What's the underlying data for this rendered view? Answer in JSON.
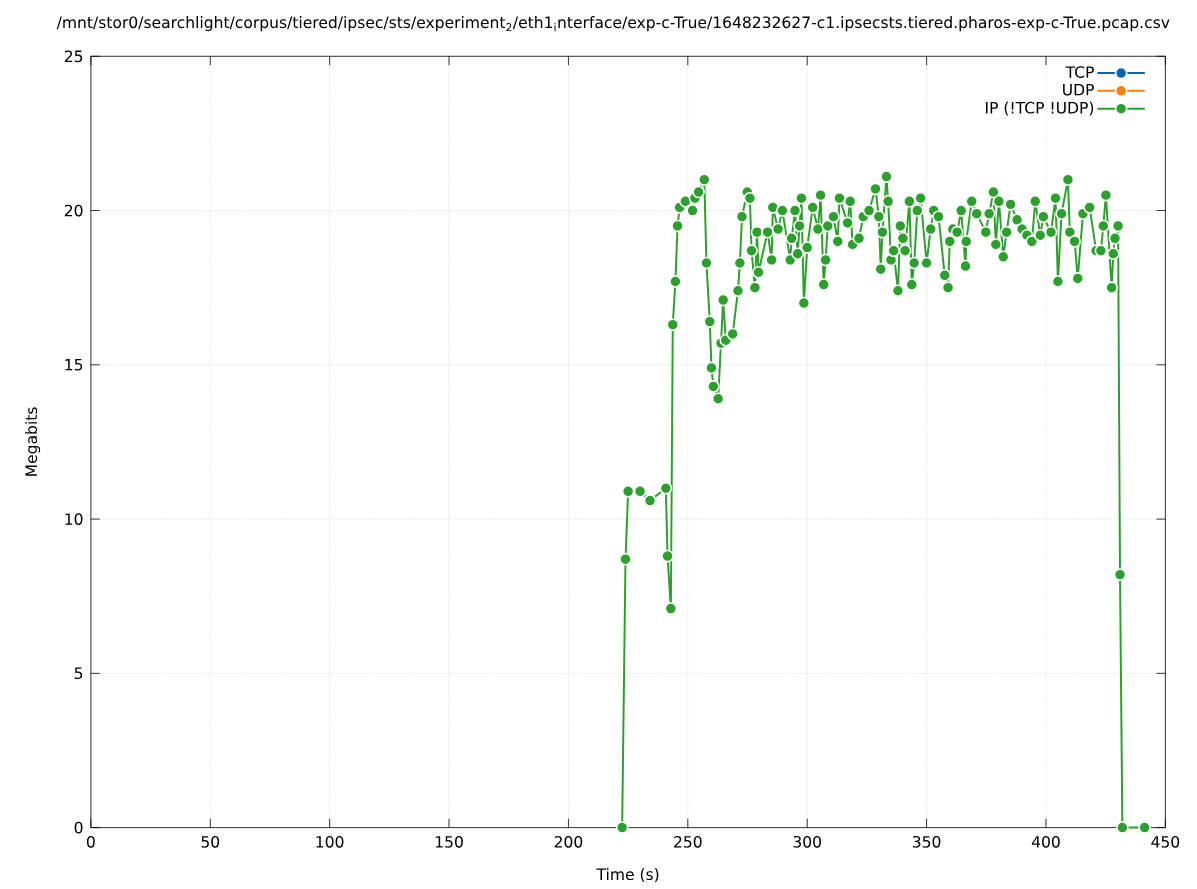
{
  "chart_data": {
    "type": "line",
    "title": "/mnt/stor0/searchlight/corpus/tiered/ipsec/sts/experiment$_{2}$/eth1$_{i}$nterface/exp-c-True/1648232627-c1.ipsecsts.tiered.pharos-exp-c-True.pcap.csv",
    "xlabel": "Time (s)",
    "ylabel": "Megabits",
    "xlim": [
      0,
      450
    ],
    "xticks": [
      0,
      50,
      100,
      150,
      200,
      250,
      300,
      350,
      400,
      450
    ],
    "ylim": [
      0,
      25
    ],
    "yticks": [
      0,
      5,
      10,
      15,
      20,
      25
    ],
    "grid": true,
    "legend": "top right",
    "marker": "circle",
    "line_style": "solid",
    "series": [
      {
        "name": "TCP",
        "color": "#0464b4"
      },
      {
        "name": "UDP",
        "color": "#ff7f0e"
      },
      {
        "name": "IP (!TCP !UDP)",
        "color": "#2ca02c",
        "x": [
          222.5,
          223.9,
          225,
          230,
          234.2,
          240.8,
          241.5,
          242.9,
          243.7,
          244.8,
          245.7,
          246.6,
          249,
          252,
          253,
          254.5,
          256.9,
          257.8,
          259.2,
          259.9,
          260.7,
          262.7,
          263.9,
          264.8,
          265.9,
          268.8,
          271.0,
          271.8,
          272.7,
          274.9,
          276,
          276.7,
          278.1,
          279,
          279.6,
          283.4,
          285.1,
          285.6,
          287.8,
          289.6,
          292.9,
          293.5,
          294.9,
          296,
          296.8,
          297.6,
          298.6,
          300,
          302.3,
          304.5,
          305.6,
          306.9,
          307.7,
          308.6,
          311,
          312.8,
          313.5,
          316.9,
          318,
          319,
          321.7,
          323.5,
          325.9,
          328.6,
          330,
          330.8,
          331.5,
          333.2,
          333.9,
          335.1,
          336.2,
          338,
          339,
          340.1,
          341,
          342.8,
          343.8,
          344.8,
          346.1,
          347.5,
          350,
          351.7,
          353,
          355,
          357.6,
          359,
          359.7,
          361,
          362.8,
          364.5,
          366.3,
          366.6,
          368.9,
          371,
          374.8,
          376.2,
          378,
          379,
          380.3,
          382.1,
          383.5,
          385.2,
          387.9,
          390,
          392,
          394.1,
          395.5,
          397.6,
          398.9,
          402.1,
          404,
          405,
          406.5,
          409.2,
          410,
          412,
          413.3,
          415.5,
          418.3,
          421,
          423,
          424,
          425.1,
          427.5,
          428.2,
          428.9,
          430.2,
          431,
          432,
          441.3
        ],
        "values": [
          0,
          8.7,
          10.9,
          10.9,
          10.6,
          11.0,
          8.8,
          7.1,
          16.3,
          17.7,
          19.5,
          20.1,
          20.3,
          20.0,
          20.4,
          20.6,
          21.0,
          18.3,
          16.4,
          14.9,
          14.3,
          13.9,
          15.7,
          17.1,
          15.8,
          16.0,
          17.4,
          18.3,
          19.8,
          20.6,
          20.4,
          18.7,
          17.5,
          19.3,
          18.0,
          19.3,
          18.4,
          20.1,
          19.4,
          20.0,
          18.4,
          19.1,
          20.0,
          18.6,
          19.5,
          20.4,
          17.0,
          18.8,
          20.1,
          19.4,
          20.5,
          17.6,
          18.4,
          19.5,
          19.8,
          19.0,
          20.4,
          19.6,
          20.3,
          18.9,
          19.1,
          19.8,
          20.0,
          20.7,
          19.8,
          18.1,
          19.3,
          21.1,
          20.3,
          18.4,
          18.7,
          17.4,
          19.5,
          19.1,
          18.7,
          20.3,
          17.6,
          18.3,
          20.0,
          20.4,
          18.3,
          19.4,
          20.0,
          19.8,
          17.9,
          17.5,
          19.0,
          19.4,
          19.3,
          20.0,
          18.2,
          19.0,
          20.3,
          19.9,
          19.3,
          19.9,
          20.6,
          18.9,
          20.3,
          18.5,
          19.3,
          20.2,
          19.7,
          19.4,
          19.2,
          19.0,
          20.3,
          19.2,
          19.8,
          19.3,
          20.4,
          17.7,
          19.9,
          21.0,
          19.3,
          19.0,
          17.8,
          19.9,
          20.1,
          18.7,
          18.7,
          19.5,
          20.5,
          17.5,
          18.6,
          19.1,
          19.5,
          8.2,
          0,
          0
        ]
      }
    ]
  }
}
